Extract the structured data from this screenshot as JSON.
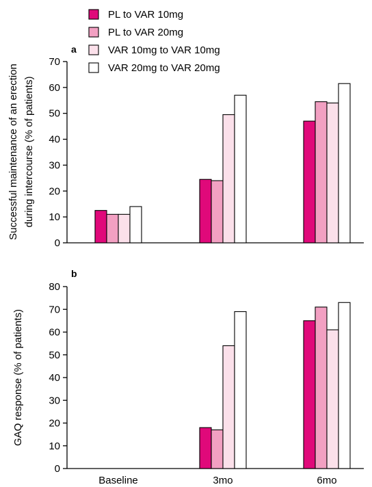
{
  "legend": [
    {
      "label": "PL to VAR 10mg",
      "color": "#E0097A"
    },
    {
      "label": "PL to VAR 20mg",
      "color": "#F2A0C2"
    },
    {
      "label": "VAR 10mg to VAR 10mg",
      "color": "#FBE0EA"
    },
    {
      "label": "VAR 20mg to VAR 20mg",
      "color": "#FFFFFF"
    }
  ],
  "chart_data": [
    {
      "type": "bar",
      "panel_label": "a",
      "ylabel_line1": "Successful maintenance of an erection",
      "ylabel_line2": "during intercourse (% of patients)",
      "xlabel": "",
      "ylim": [
        0,
        70
      ],
      "yticks": [
        0,
        10,
        20,
        30,
        40,
        50,
        60,
        70
      ],
      "categories": [
        "Baseline",
        "3mo",
        "6mo"
      ],
      "series": [
        {
          "name": "PL to VAR 10mg",
          "values": [
            12.5,
            24.5,
            47
          ]
        },
        {
          "name": "PL to VAR 20mg",
          "values": [
            11,
            24,
            54.5
          ]
        },
        {
          "name": "VAR 10mg to VAR 10mg",
          "values": [
            11,
            49.5,
            54
          ]
        },
        {
          "name": "VAR 20mg to VAR 20mg",
          "values": [
            14,
            57,
            61.5
          ]
        }
      ]
    },
    {
      "type": "bar",
      "panel_label": "b",
      "ylabel_line1": "GAQ response (% of patients)",
      "xlabel": "",
      "ylim": [
        0,
        80
      ],
      "yticks": [
        0,
        10,
        20,
        30,
        40,
        50,
        60,
        70,
        80
      ],
      "categories": [
        "Baseline",
        "3mo",
        "6mo"
      ],
      "series": [
        {
          "name": "PL to VAR 10mg",
          "values": [
            null,
            18,
            65
          ]
        },
        {
          "name": "PL to VAR 20mg",
          "values": [
            null,
            17,
            71
          ]
        },
        {
          "name": "VAR 10mg to VAR 10mg",
          "values": [
            null,
            54,
            61
          ]
        },
        {
          "name": "VAR 20mg to VAR 20mg",
          "values": [
            null,
            69,
            73
          ]
        }
      ]
    }
  ]
}
